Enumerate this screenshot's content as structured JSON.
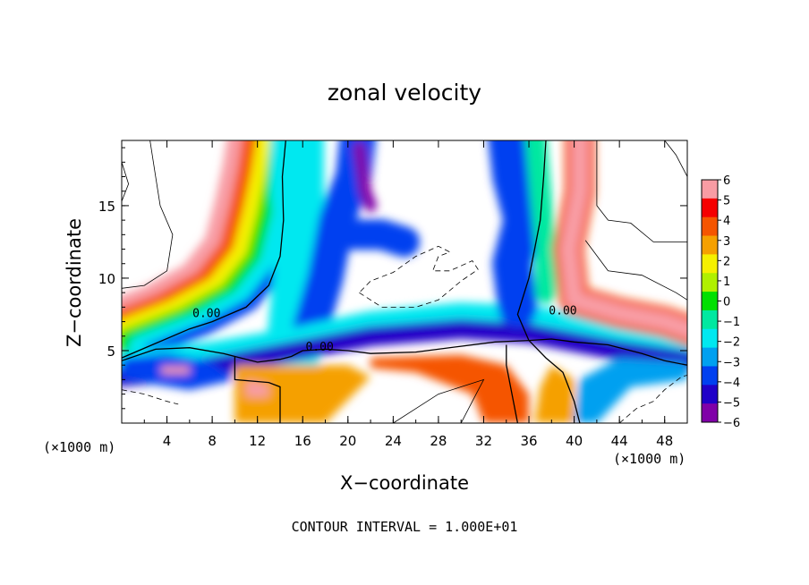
{
  "chart_data": {
    "type": "heatmap",
    "title": "zonal velocity",
    "xlabel": "X−coordinate",
    "ylabel": "Z−coordinate",
    "x_unit": "(×1000 m)",
    "y_unit": "(×1000 m)",
    "footer": "CONTOUR INTERVAL = 1.000E+01",
    "xlim": [
      0,
      50
    ],
    "ylim": [
      0,
      19.5
    ],
    "x_ticks": [
      4,
      8,
      12,
      16,
      20,
      24,
      28,
      32,
      36,
      40,
      44,
      48
    ],
    "y_ticks": [
      5,
      10,
      15
    ],
    "colorbar": {
      "min": -6,
      "max": 6,
      "ticks": [
        6,
        5,
        4,
        3,
        2,
        1,
        0,
        -1,
        -2,
        -3,
        -4,
        -5,
        -6
      ],
      "tick_labels": [
        "6",
        "5",
        "4",
        "3",
        "2",
        "1",
        "0",
        "−1",
        "−2",
        "−3",
        "−4",
        "−5",
        "−6"
      ],
      "colors": [
        "#f89ca4",
        "#f50000",
        "#f55500",
        "#f5a000",
        "#f5f000",
        "#b0f000",
        "#00e000",
        "#00e8a0",
        "#00e8f0",
        "#00a0f0",
        "#0040f0",
        "#2000c8",
        "#8000a8"
      ]
    },
    "contour_labels": [
      {
        "text": "0.00",
        "x": 7.5,
        "z": 7.3
      },
      {
        "text": "0.00",
        "x": 17.5,
        "z": 5.0
      },
      {
        "text": "0.00",
        "x": 39.0,
        "z": 7.5
      }
    ],
    "zero_contours": [
      [
        [
          0,
          4.5
        ],
        [
          3,
          5.5
        ],
        [
          6,
          6.5
        ],
        [
          8,
          7.0
        ],
        [
          11,
          8.0
        ],
        [
          13,
          9.5
        ],
        [
          14,
          11.5
        ],
        [
          14.3,
          14
        ],
        [
          14.2,
          17
        ],
        [
          14.5,
          19.5
        ]
      ],
      [
        [
          0,
          4.3
        ],
        [
          3,
          5.1
        ],
        [
          6,
          5.2
        ],
        [
          9,
          4.8
        ],
        [
          10,
          4.6
        ]
      ],
      [
        [
          10,
          4.6
        ],
        [
          12,
          4.2
        ],
        [
          14,
          4.4
        ],
        [
          15,
          4.6
        ],
        [
          16,
          5.0
        ],
        [
          18,
          5.1
        ],
        [
          20,
          5.0
        ],
        [
          22,
          4.8
        ],
        [
          26,
          4.9
        ],
        [
          30,
          5.3
        ],
        [
          33,
          5.6
        ],
        [
          36,
          5.7
        ]
      ],
      [
        [
          10,
          4.6
        ],
        [
          10,
          3.0
        ],
        [
          13,
          2.8
        ],
        [
          14,
          2.5
        ],
        [
          14,
          0
        ]
      ],
      [
        [
          36,
          5.7
        ],
        [
          37.5,
          4.5
        ],
        [
          39,
          3.5
        ],
        [
          40,
          1.5
        ],
        [
          40.5,
          0
        ]
      ],
      [
        [
          36,
          5.7
        ],
        [
          35,
          7.5
        ],
        [
          36,
          10
        ],
        [
          36.5,
          12
        ],
        [
          37,
          14
        ],
        [
          37.3,
          17
        ],
        [
          37.5,
          19.5
        ]
      ],
      [
        [
          36,
          5.7
        ],
        [
          38,
          5.8
        ],
        [
          40,
          5.6
        ],
        [
          43,
          5.4
        ],
        [
          46,
          4.8
        ],
        [
          48,
          4.3
        ],
        [
          50,
          4.0
        ]
      ],
      [
        [
          35,
          0
        ],
        [
          34.5,
          2
        ],
        [
          34,
          4
        ],
        [
          34,
          5.4
        ]
      ]
    ],
    "positive_contours": [
      [
        [
          2.5,
          19.5
        ],
        [
          3,
          17
        ],
        [
          3.4,
          15
        ],
        [
          4.5,
          13
        ],
        [
          4,
          10.5
        ],
        [
          2,
          9.5
        ],
        [
          0,
          9.3
        ]
      ],
      [
        [
          0,
          18
        ],
        [
          0.6,
          16.5
        ],
        [
          0,
          15.3
        ]
      ],
      [
        [
          24,
          0
        ],
        [
          26,
          1
        ],
        [
          28,
          2
        ],
        [
          30,
          2.5
        ],
        [
          32,
          3
        ],
        [
          31,
          1.5
        ],
        [
          30,
          0
        ]
      ],
      [
        [
          42,
          19.5
        ],
        [
          42,
          15
        ],
        [
          43,
          14
        ],
        [
          45,
          13.8
        ],
        [
          47,
          12.5
        ],
        [
          50,
          12.5
        ]
      ],
      [
        [
          41,
          12.6
        ],
        [
          43,
          10.5
        ],
        [
          46,
          10.2
        ],
        [
          49,
          9.0
        ],
        [
          50,
          8.5
        ]
      ],
      [
        [
          48,
          19.5
        ],
        [
          49,
          18.5
        ],
        [
          50,
          17
        ]
      ]
    ],
    "negative_contours": [
      [
        [
          21,
          9.0
        ],
        [
          23,
          8.0
        ],
        [
          26,
          8.0
        ],
        [
          28,
          8.5
        ],
        [
          30,
          9.8
        ],
        [
          31.5,
          10.6
        ],
        [
          31,
          11.2
        ],
        [
          29,
          10.5
        ],
        [
          27.5,
          10.5
        ],
        [
          28,
          11.5
        ],
        [
          29,
          11.8
        ],
        [
          28,
          12.2
        ],
        [
          26,
          11.5
        ],
        [
          24,
          10.4
        ],
        [
          22,
          9.8
        ],
        [
          21,
          9.0
        ]
      ],
      [
        [
          0,
          2.3
        ],
        [
          2,
          2.0
        ],
        [
          4,
          1.5
        ],
        [
          5,
          1.3
        ]
      ],
      [
        [
          44,
          0
        ],
        [
          45.5,
          1.0
        ],
        [
          47,
          1.5
        ],
        [
          48,
          2.3
        ],
        [
          49.5,
          3.2
        ],
        [
          50,
          3.3
        ]
      ]
    ]
  }
}
